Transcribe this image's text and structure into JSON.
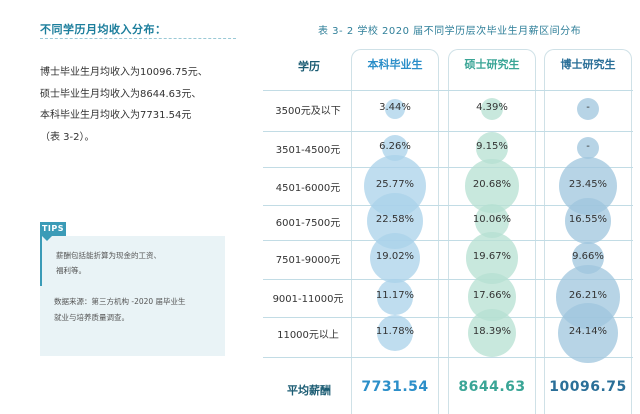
{
  "left_panel": {
    "section_title": "不同学历月均收入分布：",
    "intro_lines": [
      "博士毕业生月均收入为10096.75元、",
      "硕士毕业生月均收入为8644.63元、",
      "本科毕业生月均收入为7731.54元",
      "（表 3-2）。"
    ],
    "tips_label": "TIPS",
    "tips_lines": [
      "薪酬包括能折算为现金的工资、",
      "福利等。"
    ],
    "source_lines": [
      "数据来源：第三方机构 -2020 届毕业生",
      "就业与培养质量调查。"
    ]
  },
  "table": {
    "title": "表 3- 2  学校 2020 届不同学历层次毕业生月薪区间分布",
    "row_header": "学历",
    "columns": [
      {
        "name": "本科毕业生",
        "color": "#2c8fc9",
        "bubble": "#a9d2ea"
      },
      {
        "name": "硕士研究生",
        "color": "#3aa596",
        "bubble": "#b5e0d2"
      },
      {
        "name": "博士研究生",
        "color": "#2a6f98",
        "bubble": "#9fc6dd"
      }
    ],
    "rows": [
      {
        "label": "3500元及以下",
        "values": [
          "3.44%",
          "4.39%",
          "-"
        ]
      },
      {
        "label": "3501-4500元",
        "values": [
          "6.26%",
          "9.15%",
          "-"
        ]
      },
      {
        "label": "4501-6000元",
        "values": [
          "25.77%",
          "20.68%",
          "23.45%"
        ]
      },
      {
        "label": "6001-7500元",
        "values": [
          "22.58%",
          "10.06%",
          "16.55%"
        ]
      },
      {
        "label": "7501-9000元",
        "values": [
          "19.02%",
          "19.67%",
          "9.66%"
        ]
      },
      {
        "label": "9001-11000元",
        "values": [
          "11.17%",
          "17.66%",
          "26.21%"
        ]
      },
      {
        "label": "11000元以上",
        "values": [
          "11.78%",
          "18.39%",
          "24.14%"
        ]
      }
    ],
    "avg_label": "平均薪酬",
    "averages": [
      "7731.54",
      "8644.63",
      "10096.75"
    ]
  }
}
